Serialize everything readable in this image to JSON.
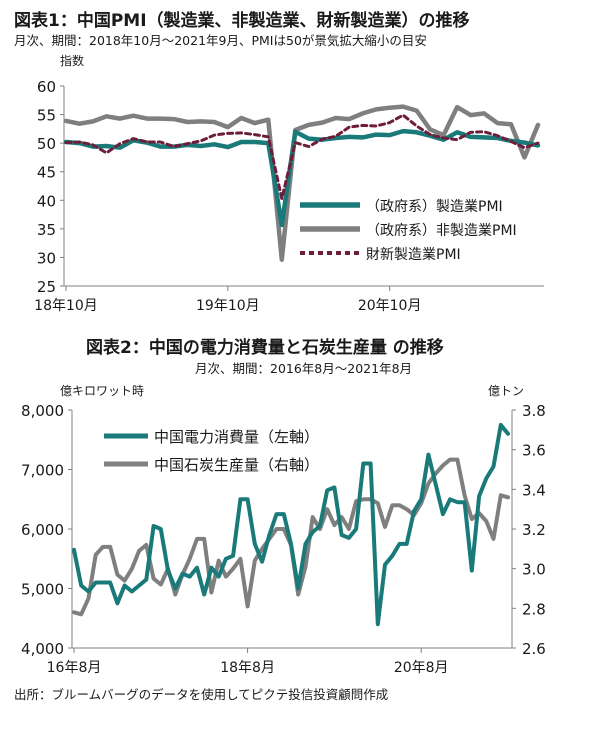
{
  "chart1": {
    "title": "図表1：中国PMI（製造業、非製造業、財新製造業）の推移",
    "subtitle": "月次、期間：2018年10月～2021年9月、PMIは50が景気拡大縮小の目安",
    "yunit": "指数"
  },
  "chart2": {
    "title": "図表2：中国の電力消費量と石炭生産量 の推移",
    "subtitle": "月次、期間：2016年8月～2021年8月",
    "yunit_left": "億キロワット時",
    "yunit_right": "億トン"
  },
  "source": "出所：ブルームバーグのデータを使用してピクテ投信投資顧問作成",
  "colors": {
    "teal": "#1a7a7a",
    "gray": "#7f7f7f",
    "maroon": "#6e1e3a",
    "axis": "#808080"
  },
  "chart_data": [
    {
      "type": "line",
      "title": "図表1：中国PMI（製造業、非製造業、財新製造業）の推移",
      "ylabel": "指数",
      "ylim": [
        25,
        60
      ],
      "yticks": [
        25,
        30,
        35,
        40,
        45,
        50,
        55,
        60
      ],
      "x": [
        "2018-10",
        "2018-11",
        "2018-12",
        "2019-01",
        "2019-02",
        "2019-03",
        "2019-04",
        "2019-05",
        "2019-06",
        "2019-07",
        "2019-08",
        "2019-09",
        "2019-10",
        "2019-11",
        "2019-12",
        "2020-01",
        "2020-02",
        "2020-03",
        "2020-04",
        "2020-05",
        "2020-06",
        "2020-07",
        "2020-08",
        "2020-09",
        "2020-10",
        "2020-11",
        "2020-12",
        "2021-01",
        "2021-02",
        "2021-03",
        "2021-04",
        "2021-05",
        "2021-06",
        "2021-07",
        "2021-08",
        "2021-09"
      ],
      "xtick_labels": [
        "18年10月",
        "19年10月",
        "20年10月"
      ],
      "xtick_positions": [
        "2018-10",
        "2019-10",
        "2020-10"
      ],
      "legend_position": "bottom-right",
      "series": [
        {
          "name": "（政府系）製造業PMI",
          "color": "#1a7a7a",
          "style": "solid",
          "values": [
            50.2,
            50.0,
            49.4,
            49.5,
            49.2,
            50.5,
            50.1,
            49.4,
            49.4,
            49.7,
            49.5,
            49.8,
            49.3,
            50.2,
            50.2,
            50.0,
            35.7,
            52.0,
            50.8,
            50.6,
            50.9,
            51.1,
            51.0,
            51.5,
            51.4,
            52.1,
            51.9,
            51.3,
            50.6,
            51.9,
            51.1,
            51.0,
            50.9,
            50.4,
            50.1,
            49.6
          ]
        },
        {
          "name": "（政府系）非製造業PMI",
          "color": "#7f7f7f",
          "style": "solid",
          "values": [
            53.9,
            53.4,
            53.8,
            54.7,
            54.3,
            54.8,
            54.3,
            54.3,
            54.2,
            53.7,
            53.8,
            53.7,
            52.8,
            54.4,
            53.5,
            54.1,
            29.6,
            52.3,
            53.2,
            53.6,
            54.4,
            54.2,
            55.2,
            55.9,
            56.2,
            56.4,
            55.7,
            52.4,
            51.4,
            56.3,
            54.9,
            55.2,
            53.5,
            53.3,
            47.5,
            53.2
          ]
        },
        {
          "name": "財新製造業PMI",
          "color": "#6e1e3a",
          "style": "dashed",
          "values": [
            50.1,
            50.2,
            49.7,
            48.3,
            49.9,
            50.8,
            50.2,
            50.2,
            49.4,
            49.9,
            50.4,
            51.4,
            51.7,
            51.8,
            51.5,
            51.1,
            40.3,
            50.1,
            49.4,
            50.7,
            51.2,
            52.8,
            53.1,
            53.0,
            53.6,
            54.9,
            53.0,
            51.5,
            50.9,
            50.6,
            51.9,
            52.0,
            51.3,
            50.3,
            49.2,
            50.0
          ]
        }
      ]
    },
    {
      "type": "line",
      "title": "図表2：中国の電力消費量と石炭生産量 の推移",
      "ylabel_left": "億キロワット時",
      "ylabel_right": "億トン",
      "ylim_left": [
        4000,
        8000
      ],
      "yticks_left": [
        4000,
        5000,
        6000,
        7000,
        8000
      ],
      "ytick_labels_left": [
        "4,000",
        "5,000",
        "6,000",
        "7,000",
        "8,000"
      ],
      "ylim_right": [
        2.6,
        3.8
      ],
      "yticks_right": [
        2.6,
        2.8,
        3.0,
        3.2,
        3.4,
        3.6,
        3.8
      ],
      "ytick_labels_right": [
        "2.6",
        "2.8",
        "3.0",
        "3.2",
        "3.4",
        "3.6",
        "3.8"
      ],
      "x": [
        "2016-08",
        "2016-09",
        "2016-10",
        "2016-11",
        "2016-12",
        "2017-01",
        "2017-02",
        "2017-03",
        "2017-04",
        "2017-05",
        "2017-06",
        "2017-07",
        "2017-08",
        "2017-09",
        "2017-10",
        "2017-11",
        "2017-12",
        "2018-01",
        "2018-02",
        "2018-03",
        "2018-04",
        "2018-05",
        "2018-06",
        "2018-07",
        "2018-08",
        "2018-09",
        "2018-10",
        "2018-11",
        "2018-12",
        "2019-01",
        "2019-02",
        "2019-03",
        "2019-04",
        "2019-05",
        "2019-06",
        "2019-07",
        "2019-08",
        "2019-09",
        "2019-10",
        "2019-11",
        "2019-12",
        "2020-01",
        "2020-02",
        "2020-03",
        "2020-04",
        "2020-05",
        "2020-06",
        "2020-07",
        "2020-08",
        "2020-09",
        "2020-10",
        "2020-11",
        "2020-12",
        "2021-01",
        "2021-02",
        "2021-03",
        "2021-04",
        "2021-05",
        "2021-06",
        "2021-07",
        "2021-08"
      ],
      "xtick_labels": [
        "16年8月",
        "18年8月",
        "20年8月"
      ],
      "xtick_positions": [
        "2016-08",
        "2018-08",
        "2020-08"
      ],
      "legend_position": "top-left",
      "series": [
        {
          "name": "中国電力消費量（左軸）",
          "color": "#1a7a7a",
          "axis": "left",
          "values": [
            5650,
            5050,
            4950,
            5100,
            5100,
            5100,
            4750,
            5050,
            4950,
            5050,
            5150,
            6050,
            6000,
            5300,
            5000,
            5250,
            5200,
            5350,
            4900,
            5350,
            5200,
            5500,
            5550,
            6500,
            6500,
            5750,
            5450,
            5900,
            6250,
            6250,
            5750,
            5000,
            5750,
            5950,
            6050,
            6650,
            6700,
            5900,
            5850,
            6000,
            7100,
            7100,
            4400,
            5400,
            5550,
            5750,
            5750,
            6300,
            6500,
            7250,
            6750,
            6250,
            6500,
            6450,
            6450,
            5300,
            6550,
            6850,
            7050,
            7750,
            7600
          ]
        },
        {
          "name": "中国石炭生産量（右軸）",
          "color": "#7f7f7f",
          "axis": "right",
          "values": [
            2.78,
            2.77,
            2.85,
            3.07,
            3.11,
            3.11,
            2.97,
            2.94,
            3.0,
            3.09,
            3.12,
            2.95,
            2.92,
            3.0,
            2.87,
            2.97,
            3.05,
            3.15,
            3.15,
            2.88,
            3.04,
            2.96,
            3.0,
            3.05,
            2.81,
            3.04,
            3.1,
            3.15,
            3.2,
            3.2,
            3.12,
            2.87,
            3.01,
            3.26,
            3.2,
            3.3,
            3.22,
            3.26,
            3.2,
            3.34,
            3.35,
            3.35,
            3.33,
            3.21,
            3.32,
            3.32,
            3.3,
            3.27,
            3.33,
            3.43,
            3.48,
            3.52,
            3.55,
            3.55,
            3.37,
            3.25,
            3.28,
            3.24,
            3.15,
            3.37,
            3.36
          ]
        }
      ]
    }
  ]
}
